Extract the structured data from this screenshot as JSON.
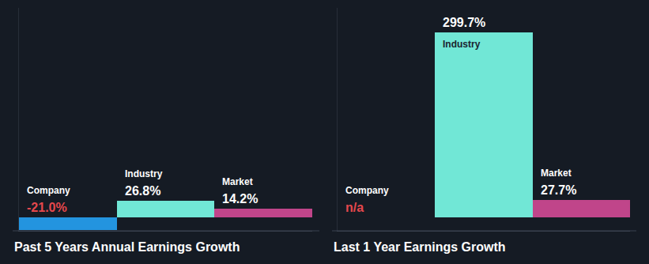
{
  "chart_data": [
    {
      "type": "bar",
      "title": "Past 5 Years Annual Earnings Growth",
      "categories": [
        "Company",
        "Industry",
        "Market"
      ],
      "values": [
        -21.0,
        26.8,
        14.2
      ],
      "value_labels": [
        "-21.0%",
        "26.8%",
        "14.2%"
      ],
      "colors": [
        "#2394df",
        "#71e7d6",
        "#c0458a"
      ],
      "ylim": [
        -22,
        340
      ],
      "tick_labels": false,
      "grid": false,
      "data_labels": true
    },
    {
      "type": "bar",
      "title": "Last 1 Year Earnings Growth",
      "categories": [
        "Company",
        "Industry",
        "Market"
      ],
      "values": [
        null,
        299.7,
        27.7
      ],
      "value_labels": [
        "n/a",
        "299.7%",
        "27.7%"
      ],
      "colors": [
        "#2394df",
        "#71e7d6",
        "#c0458a"
      ],
      "ylim": [
        -22,
        340
      ],
      "tick_labels": false,
      "grid": false,
      "data_labels": true
    }
  ]
}
